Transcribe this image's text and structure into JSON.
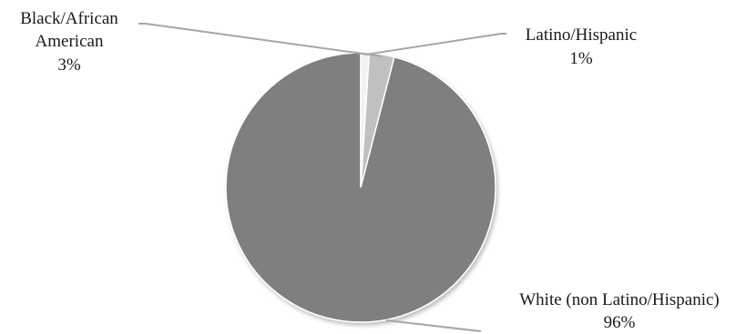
{
  "chart_data": {
    "type": "pie",
    "title": "",
    "slices": [
      {
        "label": "White (non Latino/Hispanic)",
        "value_label": "96%",
        "value": 96,
        "color": "#7f7f7f"
      },
      {
        "label": "Black/African American",
        "label_lines": [
          "Black/African",
          "American"
        ],
        "value_label": "3%",
        "value": 3,
        "color": "#c0c0c0"
      },
      {
        "label": "Latino/Hispanic",
        "value_label": "1%",
        "value": 1,
        "color": "#f2f2f2"
      }
    ],
    "start": "12 o'clock",
    "direction": "counterclockwise",
    "legend": "none",
    "leader_line_color": "#a6a6a6"
  }
}
